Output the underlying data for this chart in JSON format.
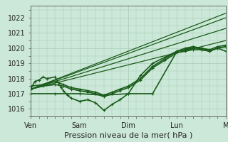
{
  "background_color": "#cce8d8",
  "grid_color": "#aacfbb",
  "line_color": "#1a5c1a",
  "marker_color": "#1a5c1a",
  "xlabel": "Pression niveau de la mer( hPa )",
  "xlabel_fontsize": 8,
  "ylim": [
    1015.5,
    1022.8
  ],
  "yticks": [
    1016,
    1017,
    1018,
    1019,
    1020,
    1021,
    1022
  ],
  "xtick_labels": [
    "Ven",
    "Sam",
    "Dim",
    "Lun",
    "M"
  ],
  "xtick_positions": [
    0,
    1,
    2,
    3,
    4
  ],
  "series": [
    [
      0.0,
      1017.3,
      0.08,
      1017.8,
      0.17,
      1017.9,
      0.25,
      1018.1,
      0.33,
      1018.0,
      0.5,
      1018.1,
      0.62,
      1017.4,
      0.67,
      1017.2,
      0.75,
      1016.9,
      0.83,
      1016.7,
      1.0,
      1016.5,
      1.17,
      1016.6,
      1.33,
      1016.4,
      1.5,
      1015.9,
      1.67,
      1016.3,
      1.83,
      1016.6,
      2.0,
      1017.0,
      2.25,
      1018.2,
      2.5,
      1019.0,
      2.75,
      1019.4,
      3.0,
      1019.8,
      3.17,
      1019.9,
      3.33,
      1020.1,
      3.5,
      1020.0,
      3.67,
      1019.8,
      3.83,
      1020.0,
      4.0,
      1019.8
    ],
    [
      0.0,
      1017.3,
      4.0,
      1022.3
    ],
    [
      0.0,
      1017.3,
      4.0,
      1022.0
    ],
    [
      0.0,
      1017.3,
      4.0,
      1021.3
    ],
    [
      0.0,
      1017.3,
      4.0,
      1020.5
    ],
    [
      0.0,
      1017.0,
      0.5,
      1017.0,
      1.0,
      1017.0,
      1.5,
      1016.9,
      2.0,
      1017.0,
      2.5,
      1017.0,
      3.0,
      1019.8,
      3.17,
      1020.0,
      3.33,
      1020.1,
      3.5,
      1019.9,
      3.67,
      1019.8,
      3.83,
      1020.0,
      4.0,
      1020.1
    ],
    [
      0.0,
      1017.5,
      0.25,
      1017.6,
      0.5,
      1017.8,
      0.67,
      1017.6,
      0.83,
      1017.4,
      1.0,
      1017.3,
      1.17,
      1017.2,
      1.33,
      1017.1,
      1.5,
      1016.9,
      1.67,
      1017.1,
      1.83,
      1017.3,
      2.0,
      1017.5,
      2.25,
      1018.0,
      2.5,
      1018.8,
      2.75,
      1019.3,
      3.0,
      1019.8,
      3.17,
      1019.9,
      3.33,
      1020.0,
      3.5,
      1020.0,
      3.67,
      1019.9,
      3.83,
      1020.1,
      4.0,
      1020.2
    ],
    [
      0.0,
      1017.3,
      0.25,
      1017.5,
      0.5,
      1017.6,
      0.67,
      1017.5,
      0.83,
      1017.3,
      1.0,
      1017.2,
      1.17,
      1017.1,
      1.33,
      1017.0,
      1.5,
      1016.8,
      1.67,
      1017.0,
      1.83,
      1017.2,
      2.0,
      1017.4,
      2.25,
      1017.9,
      2.5,
      1018.7,
      2.75,
      1019.2,
      3.0,
      1019.7,
      3.17,
      1019.8,
      3.33,
      1019.9,
      3.5,
      1019.9,
      3.67,
      1019.8,
      3.83,
      1020.0,
      4.0,
      1020.1
    ]
  ],
  "series_styles": [
    {
      "lw": 1.2,
      "marker": "+",
      "ms": 3.5,
      "zorder": 5
    },
    {
      "lw": 0.9,
      "marker": null,
      "ms": 0,
      "zorder": 3
    },
    {
      "lw": 0.9,
      "marker": null,
      "ms": 0,
      "zorder": 3
    },
    {
      "lw": 0.9,
      "marker": null,
      "ms": 0,
      "zorder": 3
    },
    {
      "lw": 0.9,
      "marker": null,
      "ms": 0,
      "zorder": 3
    },
    {
      "lw": 1.2,
      "marker": "+",
      "ms": 3.5,
      "zorder": 4
    },
    {
      "lw": 1.2,
      "marker": "+",
      "ms": 3.5,
      "zorder": 4
    },
    {
      "lw": 1.2,
      "marker": "+",
      "ms": 3.5,
      "zorder": 4
    }
  ],
  "tick_fontsize": 7,
  "figsize": [
    3.2,
    2.0
  ],
  "dpi": 100
}
